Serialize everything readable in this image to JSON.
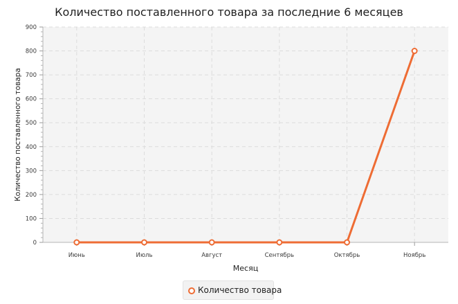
{
  "chart_data": {
    "type": "line",
    "title": "Количество поставленного товара за последние 6 месяцев",
    "xlabel": "Месяц",
    "ylabel": "Количество поставленного товара",
    "categories": [
      "Июнь",
      "Июль",
      "Август",
      "Сентябрь",
      "Октябрь",
      "Ноябрь"
    ],
    "series": [
      {
        "name": "Количество товара",
        "values": [
          0,
          0,
          0,
          0,
          0,
          800
        ],
        "color": "#ee6c34"
      }
    ],
    "ylim": [
      0,
      900
    ],
    "yticks": [
      0,
      100,
      200,
      300,
      400,
      500,
      600,
      700,
      800,
      900
    ],
    "grid": true,
    "legend_position": "bottom"
  }
}
